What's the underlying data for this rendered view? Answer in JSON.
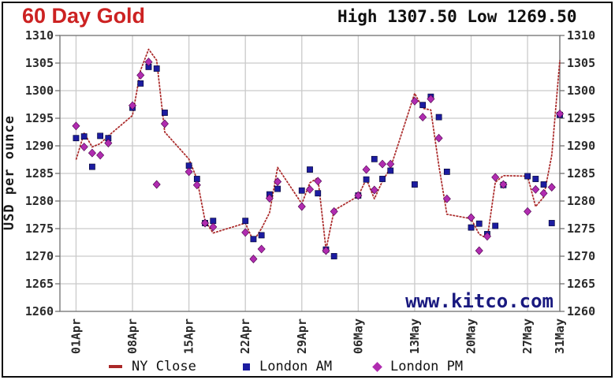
{
  "title": "60 Day Gold",
  "stats": {
    "high_label": "High",
    "high_value": "1307.50",
    "low_label": "Low",
    "low_value": "1269.50"
  },
  "watermark": "www.kitco.com",
  "y_axis": {
    "label": "USD per ounce",
    "min": 1260,
    "max": 1310,
    "step": 5
  },
  "x_ticks": [
    {
      "label": "01Apr",
      "day": 0
    },
    {
      "label": "08Apr",
      "day": 7
    },
    {
      "label": "15Apr",
      "day": 14
    },
    {
      "label": "22Apr",
      "day": 21
    },
    {
      "label": "29Apr",
      "day": 28
    },
    {
      "label": "06May",
      "day": 35
    },
    {
      "label": "13May",
      "day": 42
    },
    {
      "label": "20May",
      "day": 49
    },
    {
      "label": "27May",
      "day": 56
    },
    {
      "label": "31May",
      "day": 60
    }
  ],
  "legend": [
    {
      "label": "NY Close",
      "marker": "dash",
      "color": "#aa2828"
    },
    {
      "label": "London AM",
      "marker": "square",
      "color": "#1c1ca0"
    },
    {
      "label": "London PM",
      "marker": "diamond",
      "color": "#b02cb0"
    }
  ],
  "colors": {
    "title_red": "#cc2222",
    "grid": "#cacaca",
    "plot_frame": "#7a7a7a",
    "tick_text": "#2b2b2b",
    "watermark_navy": "#19197f",
    "outer_border": "#0c0c0c"
  },
  "chart_data": {
    "type": "line",
    "title": "60 Day Gold",
    "high": 1307.5,
    "low": 1269.5,
    "ylabel": "USD per ounce",
    "ylim": [
      1260,
      1310
    ],
    "y_tick_step": 5,
    "grid": true,
    "legend_position": "bottom",
    "x": [
      "01Apr",
      "02Apr",
      "03Apr",
      "04Apr",
      "05Apr",
      "08Apr",
      "09Apr",
      "10Apr",
      "11Apr",
      "12Apr",
      "15Apr",
      "16Apr",
      "17Apr",
      "18Apr",
      "22Apr",
      "23Apr",
      "24Apr",
      "25Apr",
      "26Apr",
      "29Apr",
      "30Apr",
      "01May",
      "02May",
      "03May",
      "06May",
      "07May",
      "08May",
      "09May",
      "10May",
      "13May",
      "14May",
      "15May",
      "16May",
      "17May",
      "20May",
      "21May",
      "22May",
      "23May",
      "24May",
      "27May",
      "28May",
      "29May",
      "30May",
      "31May"
    ],
    "day_offsets": [
      0,
      1,
      2,
      3,
      4,
      7,
      8,
      9,
      10,
      11,
      14,
      15,
      16,
      17,
      21,
      22,
      23,
      24,
      25,
      28,
      29,
      30,
      31,
      32,
      35,
      36,
      37,
      38,
      39,
      42,
      43,
      44,
      45,
      46,
      49,
      50,
      51,
      52,
      53,
      56,
      57,
      58,
      59,
      60
    ],
    "series": [
      {
        "name": "NY Close",
        "type": "line",
        "color": "#aa2828",
        "values": [
          1287.5,
          1292.3,
          1289.8,
          1290.4,
          1291.8,
          1295.5,
          1303.7,
          1307.5,
          1305.5,
          1292.5,
          1287.6,
          1284.0,
          1276.4,
          1274.2,
          1276.0,
          1272.7,
          1275.0,
          1277.9,
          1286.1,
          1279.5,
          1283.3,
          1284.2,
          1271.2,
          1278.3,
          1280.9,
          1284.0,
          1280.4,
          1283.6,
          1286.0,
          1299.5,
          1296.8,
          1296.5,
          1286.4,
          1277.6,
          1276.8,
          1274.0,
          1273.2,
          1283.4,
          1284.6,
          1284.5,
          1279.0,
          1280.7,
          1288.3,
          1305.5
        ]
      },
      {
        "name": "London AM",
        "type": "scatter-square",
        "color": "#1c1ca0",
        "values": [
          1291.4,
          1291.7,
          1286.2,
          1291.8,
          1291.4,
          1296.9,
          1301.3,
          1304.3,
          1304.0,
          1296.0,
          1286.4,
          1284.0,
          1276.0,
          1276.4,
          1276.4,
          1273.1,
          1273.8,
          1281.2,
          1282.2,
          1281.9,
          1285.7,
          1281.4,
          1271.2,
          1270.0,
          1281.0,
          1283.9,
          1287.6,
          1284.0,
          1285.5,
          1283.0,
          1297.4,
          1298.9,
          1295.2,
          1285.3,
          1275.2,
          1275.9,
          1274.0,
          1275.5,
          1282.9,
          1284.5,
          1284.0,
          1283.0,
          1276.0,
          1295.6
        ]
      },
      {
        "name": "London PM",
        "type": "scatter-diamond",
        "color": "#b02cb0",
        "values": [
          1293.6,
          1289.8,
          1288.7,
          1288.3,
          1290.5,
          1297.3,
          1302.8,
          1305.2,
          1283.0,
          1294.0,
          1285.3,
          1282.9,
          1276.0,
          1275.3,
          1274.3,
          1269.5,
          1271.3,
          1280.5,
          1283.5,
          1279.0,
          1282.1,
          1283.6,
          1271.0,
          1278.1,
          1281.0,
          1285.7,
          1282.0,
          1286.7,
          1286.7,
          1298.1,
          1295.2,
          1298.5,
          1291.4,
          1280.4,
          1277.0,
          1271.0,
          1273.6,
          1284.3,
          1283.0,
          1278.1,
          1282.1,
          1281.4,
          1282.5,
          1295.8
        ]
      }
    ]
  }
}
